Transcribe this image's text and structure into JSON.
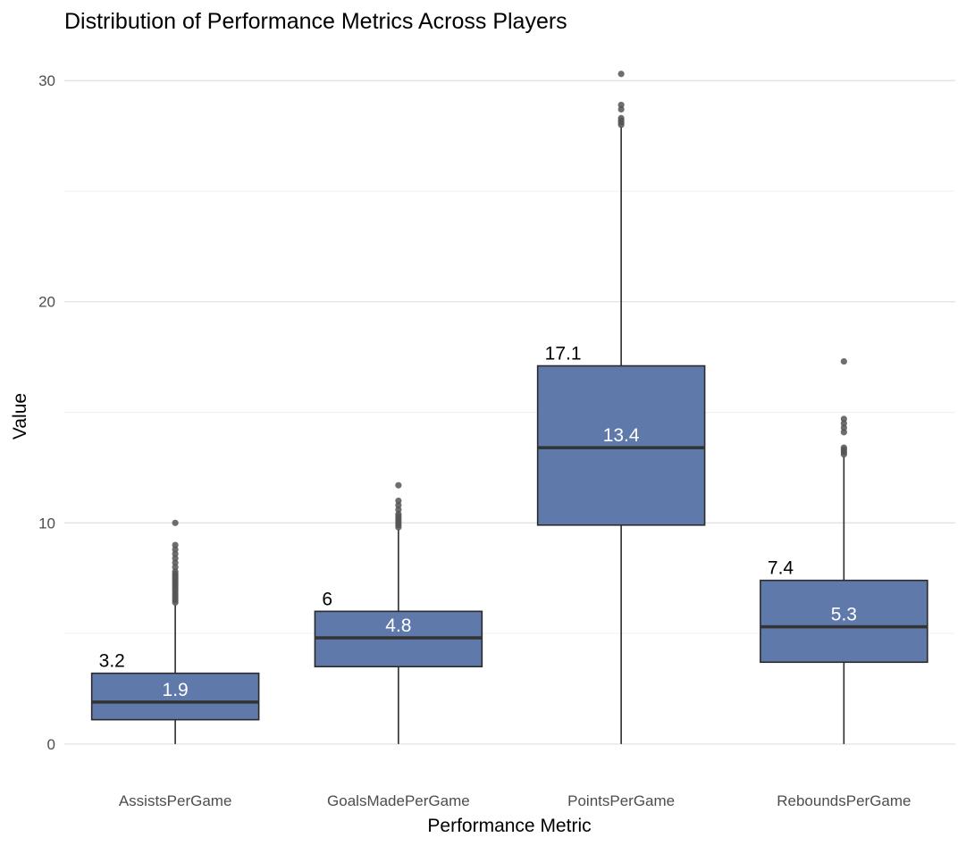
{
  "chart_data": {
    "type": "boxplot",
    "title": "Distribution of Performance Metrics Across Players",
    "xlabel": "Performance Metric",
    "ylabel": "Value",
    "ylim": [
      -1.5,
      31.3
    ],
    "yticks": [
      0,
      10,
      20,
      30
    ],
    "grid": true,
    "legend": "none",
    "colors": {
      "box_fill": "#5f79ab",
      "box_stroke": "#2b2b2b",
      "outlier": "#555555",
      "grid_major": "#e3e3e3",
      "grid_minor": "#f0f0f0"
    },
    "categories": [
      "AssistsPerGame",
      "GoalsMadePerGame",
      "PointsPerGame",
      "ReboundsPerGame"
    ],
    "boxes": [
      {
        "category": "AssistsPerGame",
        "min": 0,
        "q1": 1.1,
        "median": 1.9,
        "q3": 3.2,
        "max": 6.3,
        "median_label": "1.9",
        "q3_label": "3.2",
        "outliers": [
          6.4,
          6.5,
          6.6,
          6.7,
          6.8,
          6.9,
          7.0,
          7.1,
          7.2,
          7.3,
          7.4,
          7.5,
          7.6,
          7.7,
          7.8,
          8.0,
          8.2,
          8.4,
          8.6,
          8.8,
          9.0,
          10.0
        ]
      },
      {
        "category": "GoalsMadePerGame",
        "min": 0,
        "q1": 3.5,
        "median": 4.8,
        "q3": 6.0,
        "max": 9.7,
        "median_label": "4.8",
        "q3_label": "6",
        "outliers": [
          9.8,
          9.9,
          10.0,
          10.1,
          10.2,
          10.3,
          10.4,
          10.6,
          10.8,
          11.0,
          11.7
        ]
      },
      {
        "category": "PointsPerGame",
        "min": 0,
        "q1": 9.9,
        "median": 13.4,
        "q3": 17.1,
        "max": 27.9,
        "median_label": "13.4",
        "q3_label": "17.1",
        "outliers": [
          28.0,
          28.1,
          28.2,
          28.3,
          28.7,
          28.9,
          30.3
        ]
      },
      {
        "category": "ReboundsPerGame",
        "min": 0,
        "q1": 3.7,
        "median": 5.3,
        "q3": 7.4,
        "max": 13.0,
        "median_label": "5.3",
        "q3_label": "7.4",
        "outliers": [
          13.1,
          13.2,
          13.3,
          13.4,
          14.1,
          14.3,
          14.5,
          14.7,
          17.3
        ]
      }
    ]
  }
}
